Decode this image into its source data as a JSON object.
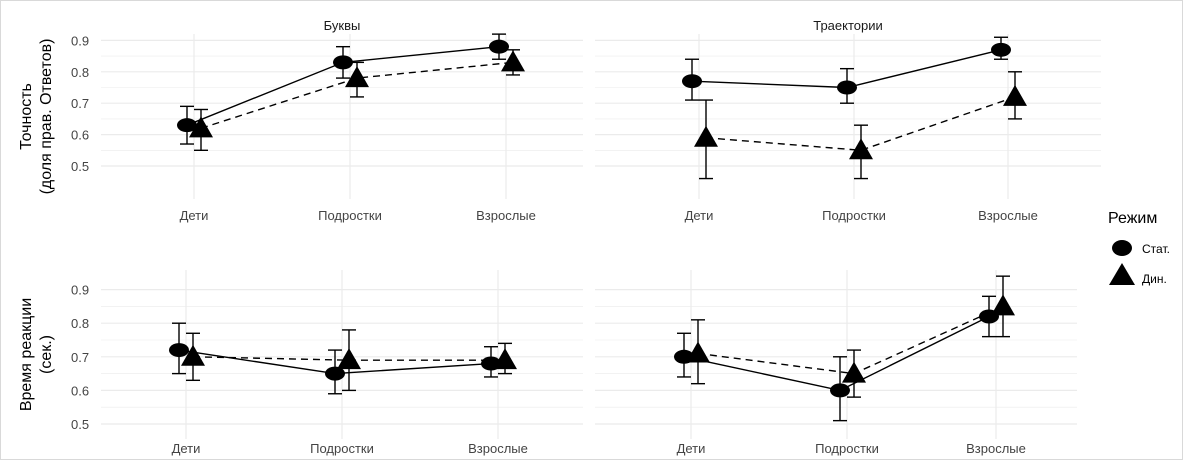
{
  "legend": {
    "title": "Режим",
    "items": [
      {
        "label": "Стат.",
        "shape": "circle",
        "linetype": "solid"
      },
      {
        "label": "Дин.",
        "shape": "triangle",
        "linetype": "dashed"
      }
    ]
  },
  "colors": {
    "line": "#000000",
    "grid": "#ebebeb",
    "text": "#444444",
    "border": "#d9d9d9"
  },
  "chart_data": [
    {
      "type": "line",
      "title": "Буквы",
      "ylabel": [
        "Точность",
        "(доля прав. Ответов)"
      ],
      "categories": [
        "Дети",
        "Подростки",
        "Взрослые"
      ],
      "yticks": [
        "0.5",
        "0.6",
        "0.7",
        "0.8",
        "0.9"
      ],
      "ylim": [
        0.46,
        0.96
      ],
      "series": [
        {
          "name": "Стат.",
          "values": [
            0.63,
            0.83,
            0.88
          ],
          "lower": [
            0.57,
            0.78,
            0.84
          ],
          "upper": [
            0.69,
            0.88,
            0.92
          ]
        },
        {
          "name": "Дин.",
          "values": [
            0.62,
            0.78,
            0.83
          ],
          "lower": [
            0.55,
            0.72,
            0.79
          ],
          "upper": [
            0.68,
            0.83,
            0.87
          ]
        }
      ]
    },
    {
      "type": "line",
      "title": "Траектории",
      "ylabel": [],
      "categories": [
        "Дети",
        "Подростки",
        "Взрослые"
      ],
      "yticks": [],
      "ylim": [
        0.46,
        0.96
      ],
      "series": [
        {
          "name": "Стат.",
          "values": [
            0.77,
            0.75,
            0.87
          ],
          "lower": [
            0.71,
            0.7,
            0.84
          ],
          "upper": [
            0.84,
            0.81,
            0.91
          ]
        },
        {
          "name": "Дин.",
          "values": [
            0.59,
            0.55,
            0.72
          ],
          "lower": [
            0.46,
            0.46,
            0.65
          ],
          "upper": [
            0.71,
            0.63,
            0.8
          ]
        }
      ]
    },
    {
      "type": "line",
      "title": "",
      "ylabel": [
        "Время реакции",
        "(сек.)"
      ],
      "categories": [
        "Дети",
        "Подростки",
        "Взрослые"
      ],
      "yticks": [
        "0.5",
        "0.6",
        "0.7",
        "0.8",
        "0.9"
      ],
      "ylim": [
        0.48,
        0.96
      ],
      "series": [
        {
          "name": "Стат.",
          "values": [
            0.72,
            0.65,
            0.68
          ],
          "lower": [
            0.65,
            0.59,
            0.64
          ],
          "upper": [
            0.8,
            0.72,
            0.73
          ]
        },
        {
          "name": "Дин.",
          "values": [
            0.7,
            0.69,
            0.69
          ],
          "lower": [
            0.63,
            0.6,
            0.65
          ],
          "upper": [
            0.77,
            0.78,
            0.74
          ]
        }
      ]
    },
    {
      "type": "line",
      "title": "",
      "ylabel": [],
      "categories": [
        "Дети",
        "Подростки",
        "Взрослые"
      ],
      "yticks": [],
      "ylim": [
        0.48,
        0.96
      ],
      "series": [
        {
          "name": "Стат.",
          "values": [
            0.7,
            0.6,
            0.82
          ],
          "lower": [
            0.64,
            0.51,
            0.76
          ],
          "upper": [
            0.77,
            0.7,
            0.88
          ]
        },
        {
          "name": "Дин.",
          "values": [
            0.71,
            0.65,
            0.85
          ],
          "lower": [
            0.62,
            0.58,
            0.76
          ],
          "upper": [
            0.81,
            0.72,
            0.94
          ]
        }
      ]
    }
  ]
}
